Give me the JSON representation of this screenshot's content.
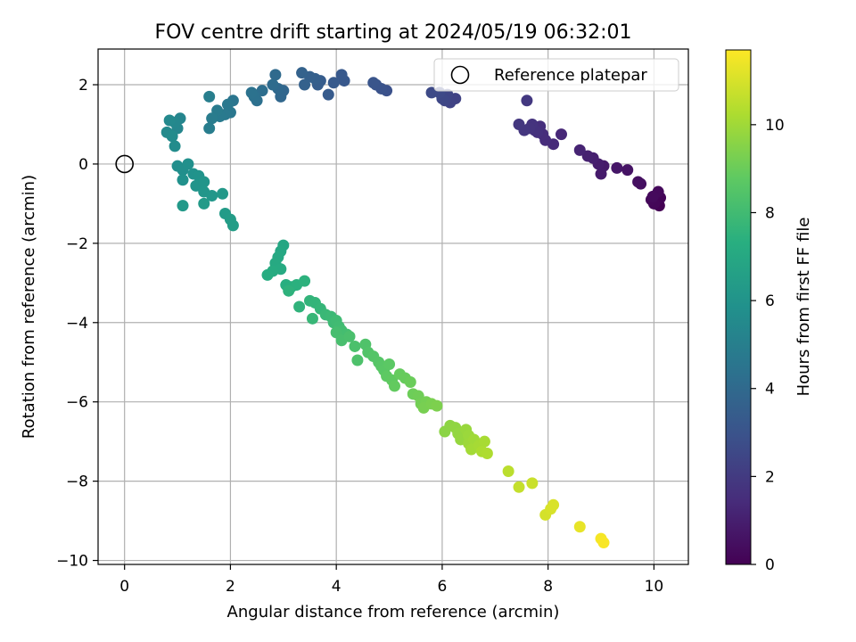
{
  "chart_data": {
    "type": "scatter",
    "title": "FOV centre drift starting at 2024/05/19 06:32:01",
    "xlabel": "Angular distance from reference (arcmin)",
    "ylabel": "Rotation from reference (arcmin)",
    "xlim": [
      -0.5,
      10.65
    ],
    "ylim": [
      -10.1,
      2.9
    ],
    "xticks": [
      0,
      2,
      4,
      6,
      8,
      10
    ],
    "yticks": [
      -10,
      -8,
      -6,
      -4,
      -2,
      0,
      2
    ],
    "grid": true,
    "colormap": "viridis",
    "colorbar": {
      "label": "Hours from first FF file",
      "range": [
        0,
        11.7
      ],
      "ticks": [
        0,
        2,
        4,
        6,
        8,
        10
      ]
    },
    "legend": {
      "position": "top-right",
      "entries": [
        {
          "label": "Reference platepar",
          "marker": "open-circle"
        }
      ]
    },
    "reference_point": {
      "x": 0,
      "y": 0
    },
    "points": [
      {
        "x": 10.1,
        "y": -1.05,
        "t": 0.0
      },
      {
        "x": 10.05,
        "y": -0.95,
        "t": 0.05
      },
      {
        "x": 10.12,
        "y": -0.85,
        "t": 0.1
      },
      {
        "x": 10.0,
        "y": -1.0,
        "t": 0.15
      },
      {
        "x": 9.95,
        "y": -0.9,
        "t": 0.2
      },
      {
        "x": 10.08,
        "y": -0.7,
        "t": 0.25
      },
      {
        "x": 9.98,
        "y": -0.82,
        "t": 0.3
      },
      {
        "x": 9.75,
        "y": -0.5,
        "t": 0.45
      },
      {
        "x": 9.7,
        "y": -0.45,
        "t": 0.5
      },
      {
        "x": 9.5,
        "y": -0.15,
        "t": 0.6
      },
      {
        "x": 9.3,
        "y": -0.1,
        "t": 0.7
      },
      {
        "x": 9.05,
        "y": -0.05,
        "t": 0.8
      },
      {
        "x": 9.0,
        "y": -0.25,
        "t": 0.85
      },
      {
        "x": 8.95,
        "y": 0.0,
        "t": 0.9
      },
      {
        "x": 8.85,
        "y": 0.15,
        "t": 1.0
      },
      {
        "x": 8.75,
        "y": 0.2,
        "t": 1.05
      },
      {
        "x": 8.6,
        "y": 0.35,
        "t": 1.15
      },
      {
        "x": 8.25,
        "y": 0.75,
        "t": 1.3
      },
      {
        "x": 8.1,
        "y": 0.5,
        "t": 1.4
      },
      {
        "x": 7.95,
        "y": 0.6,
        "t": 1.45
      },
      {
        "x": 7.9,
        "y": 0.75,
        "t": 1.5
      },
      {
        "x": 7.85,
        "y": 0.95,
        "t": 1.55
      },
      {
        "x": 7.8,
        "y": 0.8,
        "t": 1.6
      },
      {
        "x": 7.75,
        "y": 0.85,
        "t": 1.65
      },
      {
        "x": 7.7,
        "y": 1.0,
        "t": 1.7
      },
      {
        "x": 7.65,
        "y": 0.9,
        "t": 1.75
      },
      {
        "x": 7.55,
        "y": 0.85,
        "t": 1.8
      },
      {
        "x": 7.45,
        "y": 1.0,
        "t": 1.85
      },
      {
        "x": 7.6,
        "y": 1.6,
        "t": 1.9
      },
      {
        "x": 6.25,
        "y": 1.65,
        "t": 2.3
      },
      {
        "x": 6.15,
        "y": 1.55,
        "t": 2.35
      },
      {
        "x": 6.1,
        "y": 1.75,
        "t": 2.4
      },
      {
        "x": 6.05,
        "y": 1.6,
        "t": 2.45
      },
      {
        "x": 6.0,
        "y": 1.65,
        "t": 2.5
      },
      {
        "x": 5.95,
        "y": 1.8,
        "t": 2.55
      },
      {
        "x": 5.8,
        "y": 1.8,
        "t": 2.6
      },
      {
        "x": 4.95,
        "y": 1.85,
        "t": 2.9
      },
      {
        "x": 4.85,
        "y": 1.9,
        "t": 2.95
      },
      {
        "x": 4.75,
        "y": 2.0,
        "t": 3.0
      },
      {
        "x": 4.7,
        "y": 2.05,
        "t": 3.05
      },
      {
        "x": 4.15,
        "y": 2.1,
        "t": 3.2
      },
      {
        "x": 4.1,
        "y": 2.25,
        "t": 3.25
      },
      {
        "x": 3.95,
        "y": 2.05,
        "t": 3.3
      },
      {
        "x": 3.85,
        "y": 1.75,
        "t": 3.35
      },
      {
        "x": 3.7,
        "y": 2.1,
        "t": 3.4
      },
      {
        "x": 3.65,
        "y": 2.0,
        "t": 3.45
      },
      {
        "x": 3.6,
        "y": 2.15,
        "t": 3.5
      },
      {
        "x": 3.5,
        "y": 2.2,
        "t": 3.55
      },
      {
        "x": 3.4,
        "y": 2.0,
        "t": 3.6
      },
      {
        "x": 3.35,
        "y": 2.3,
        "t": 3.65
      },
      {
        "x": 3.0,
        "y": 1.85,
        "t": 3.85
      },
      {
        "x": 2.95,
        "y": 1.7,
        "t": 3.9
      },
      {
        "x": 2.9,
        "y": 1.9,
        "t": 3.95
      },
      {
        "x": 2.85,
        "y": 2.25,
        "t": 4.0
      },
      {
        "x": 2.8,
        "y": 2.0,
        "t": 4.05
      },
      {
        "x": 2.6,
        "y": 1.85,
        "t": 4.2
      },
      {
        "x": 2.5,
        "y": 1.6,
        "t": 4.3
      },
      {
        "x": 2.45,
        "y": 1.7,
        "t": 4.35
      },
      {
        "x": 2.4,
        "y": 1.8,
        "t": 4.4
      },
      {
        "x": 2.05,
        "y": 1.6,
        "t": 4.55
      },
      {
        "x": 2.0,
        "y": 1.3,
        "t": 4.6
      },
      {
        "x": 1.95,
        "y": 1.5,
        "t": 4.65
      },
      {
        "x": 1.9,
        "y": 1.25,
        "t": 4.7
      },
      {
        "x": 1.8,
        "y": 1.2,
        "t": 4.75
      },
      {
        "x": 1.75,
        "y": 1.35,
        "t": 4.8
      },
      {
        "x": 1.65,
        "y": 1.15,
        "t": 4.85
      },
      {
        "x": 1.6,
        "y": 0.9,
        "t": 4.9
      },
      {
        "x": 1.6,
        "y": 1.7,
        "t": 4.95
      },
      {
        "x": 1.05,
        "y": 1.15,
        "t": 5.3
      },
      {
        "x": 1.0,
        "y": 0.9,
        "t": 5.35
      },
      {
        "x": 0.95,
        "y": 1.05,
        "t": 5.4
      },
      {
        "x": 0.85,
        "y": 1.1,
        "t": 5.45
      },
      {
        "x": 0.8,
        "y": 0.8,
        "t": 5.5
      },
      {
        "x": 0.9,
        "y": 0.7,
        "t": 5.55
      },
      {
        "x": 0.95,
        "y": 0.45,
        "t": 5.6
      },
      {
        "x": 1.0,
        "y": -0.05,
        "t": 5.7
      },
      {
        "x": 1.1,
        "y": -0.15,
        "t": 5.75
      },
      {
        "x": 1.2,
        "y": 0.0,
        "t": 5.8
      },
      {
        "x": 1.1,
        "y": -0.4,
        "t": 5.85
      },
      {
        "x": 1.3,
        "y": -0.25,
        "t": 5.9
      },
      {
        "x": 1.4,
        "y": -0.3,
        "t": 5.95
      },
      {
        "x": 1.35,
        "y": -0.55,
        "t": 6.0
      },
      {
        "x": 1.5,
        "y": -0.45,
        "t": 6.05
      },
      {
        "x": 1.5,
        "y": -0.7,
        "t": 6.1
      },
      {
        "x": 1.65,
        "y": -0.8,
        "t": 6.15
      },
      {
        "x": 1.85,
        "y": -0.75,
        "t": 6.2
      },
      {
        "x": 1.1,
        "y": -1.05,
        "t": 6.25
      },
      {
        "x": 1.5,
        "y": -1.0,
        "t": 6.3
      },
      {
        "x": 1.9,
        "y": -1.25,
        "t": 6.35
      },
      {
        "x": 2.0,
        "y": -1.4,
        "t": 6.4
      },
      {
        "x": 2.05,
        "y": -1.55,
        "t": 6.45
      },
      {
        "x": 3.0,
        "y": -2.05,
        "t": 6.9
      },
      {
        "x": 2.95,
        "y": -2.2,
        "t": 6.95
      },
      {
        "x": 2.9,
        "y": -2.35,
        "t": 7.0
      },
      {
        "x": 2.85,
        "y": -2.5,
        "t": 7.05
      },
      {
        "x": 2.95,
        "y": -2.65,
        "t": 7.1
      },
      {
        "x": 2.8,
        "y": -2.7,
        "t": 7.15
      },
      {
        "x": 2.7,
        "y": -2.8,
        "t": 7.2
      },
      {
        "x": 3.05,
        "y": -3.05,
        "t": 7.3
      },
      {
        "x": 3.15,
        "y": -3.1,
        "t": 7.35
      },
      {
        "x": 3.25,
        "y": -3.05,
        "t": 7.4
      },
      {
        "x": 3.4,
        "y": -2.95,
        "t": 7.45
      },
      {
        "x": 3.1,
        "y": -3.2,
        "t": 7.5
      },
      {
        "x": 3.3,
        "y": -3.6,
        "t": 7.55
      },
      {
        "x": 3.5,
        "y": -3.45,
        "t": 7.6
      },
      {
        "x": 3.6,
        "y": -3.5,
        "t": 7.65
      },
      {
        "x": 3.7,
        "y": -3.65,
        "t": 7.7
      },
      {
        "x": 3.55,
        "y": -3.9,
        "t": 7.75
      },
      {
        "x": 3.8,
        "y": -3.8,
        "t": 7.8
      },
      {
        "x": 3.9,
        "y": -3.85,
        "t": 7.85
      },
      {
        "x": 3.95,
        "y": -4.0,
        "t": 7.9
      },
      {
        "x": 4.0,
        "y": -3.95,
        "t": 7.95
      },
      {
        "x": 4.05,
        "y": -4.1,
        "t": 8.0
      },
      {
        "x": 4.1,
        "y": -4.2,
        "t": 8.05
      },
      {
        "x": 4.2,
        "y": -4.3,
        "t": 8.1
      },
      {
        "x": 4.0,
        "y": -4.25,
        "t": 8.15
      },
      {
        "x": 4.1,
        "y": -4.45,
        "t": 8.2
      },
      {
        "x": 4.25,
        "y": -4.35,
        "t": 8.25
      },
      {
        "x": 4.35,
        "y": -4.6,
        "t": 8.3
      },
      {
        "x": 4.4,
        "y": -4.95,
        "t": 8.35
      },
      {
        "x": 4.55,
        "y": -4.55,
        "t": 8.4
      },
      {
        "x": 4.6,
        "y": -4.75,
        "t": 8.45
      },
      {
        "x": 4.7,
        "y": -4.85,
        "t": 8.5
      },
      {
        "x": 4.8,
        "y": -5.0,
        "t": 8.55
      },
      {
        "x": 4.85,
        "y": -5.1,
        "t": 8.6
      },
      {
        "x": 4.9,
        "y": -5.2,
        "t": 8.65
      },
      {
        "x": 5.0,
        "y": -5.05,
        "t": 8.7
      },
      {
        "x": 4.95,
        "y": -5.35,
        "t": 8.75
      },
      {
        "x": 5.05,
        "y": -5.45,
        "t": 8.8
      },
      {
        "x": 5.1,
        "y": -5.6,
        "t": 8.85
      },
      {
        "x": 5.2,
        "y": -5.3,
        "t": 8.9
      },
      {
        "x": 5.3,
        "y": -5.4,
        "t": 8.95
      },
      {
        "x": 5.4,
        "y": -5.5,
        "t": 9.0
      },
      {
        "x": 5.45,
        "y": -5.8,
        "t": 9.05
      },
      {
        "x": 5.55,
        "y": -5.85,
        "t": 9.1
      },
      {
        "x": 5.6,
        "y": -6.05,
        "t": 9.15
      },
      {
        "x": 5.7,
        "y": -6.0,
        "t": 9.2
      },
      {
        "x": 5.65,
        "y": -6.15,
        "t": 9.25
      },
      {
        "x": 5.8,
        "y": -6.05,
        "t": 9.3
      },
      {
        "x": 5.9,
        "y": -6.1,
        "t": 9.35
      },
      {
        "x": 6.05,
        "y": -6.75,
        "t": 9.6
      },
      {
        "x": 6.15,
        "y": -6.6,
        "t": 9.65
      },
      {
        "x": 6.25,
        "y": -6.65,
        "t": 9.7
      },
      {
        "x": 6.3,
        "y": -6.8,
        "t": 9.75
      },
      {
        "x": 6.35,
        "y": -6.95,
        "t": 9.8
      },
      {
        "x": 6.45,
        "y": -6.7,
        "t": 9.85
      },
      {
        "x": 6.5,
        "y": -6.85,
        "t": 9.9
      },
      {
        "x": 6.5,
        "y": -7.05,
        "t": 9.95
      },
      {
        "x": 6.6,
        "y": -6.95,
        "t": 10.0
      },
      {
        "x": 6.55,
        "y": -7.2,
        "t": 10.05
      },
      {
        "x": 6.7,
        "y": -7.1,
        "t": 10.1
      },
      {
        "x": 6.8,
        "y": -7.0,
        "t": 10.15
      },
      {
        "x": 6.75,
        "y": -7.25,
        "t": 10.2
      },
      {
        "x": 6.85,
        "y": -7.3,
        "t": 10.25
      },
      {
        "x": 7.25,
        "y": -7.75,
        "t": 10.5
      },
      {
        "x": 7.45,
        "y": -8.15,
        "t": 10.65
      },
      {
        "x": 7.7,
        "y": -8.05,
        "t": 10.75
      },
      {
        "x": 7.95,
        "y": -8.85,
        "t": 10.95
      },
      {
        "x": 8.05,
        "y": -8.7,
        "t": 11.0
      },
      {
        "x": 8.1,
        "y": -8.6,
        "t": 11.05
      },
      {
        "x": 8.6,
        "y": -9.15,
        "t": 11.3
      },
      {
        "x": 9.0,
        "y": -9.45,
        "t": 11.55
      },
      {
        "x": 9.05,
        "y": -9.55,
        "t": 11.6
      }
    ]
  }
}
